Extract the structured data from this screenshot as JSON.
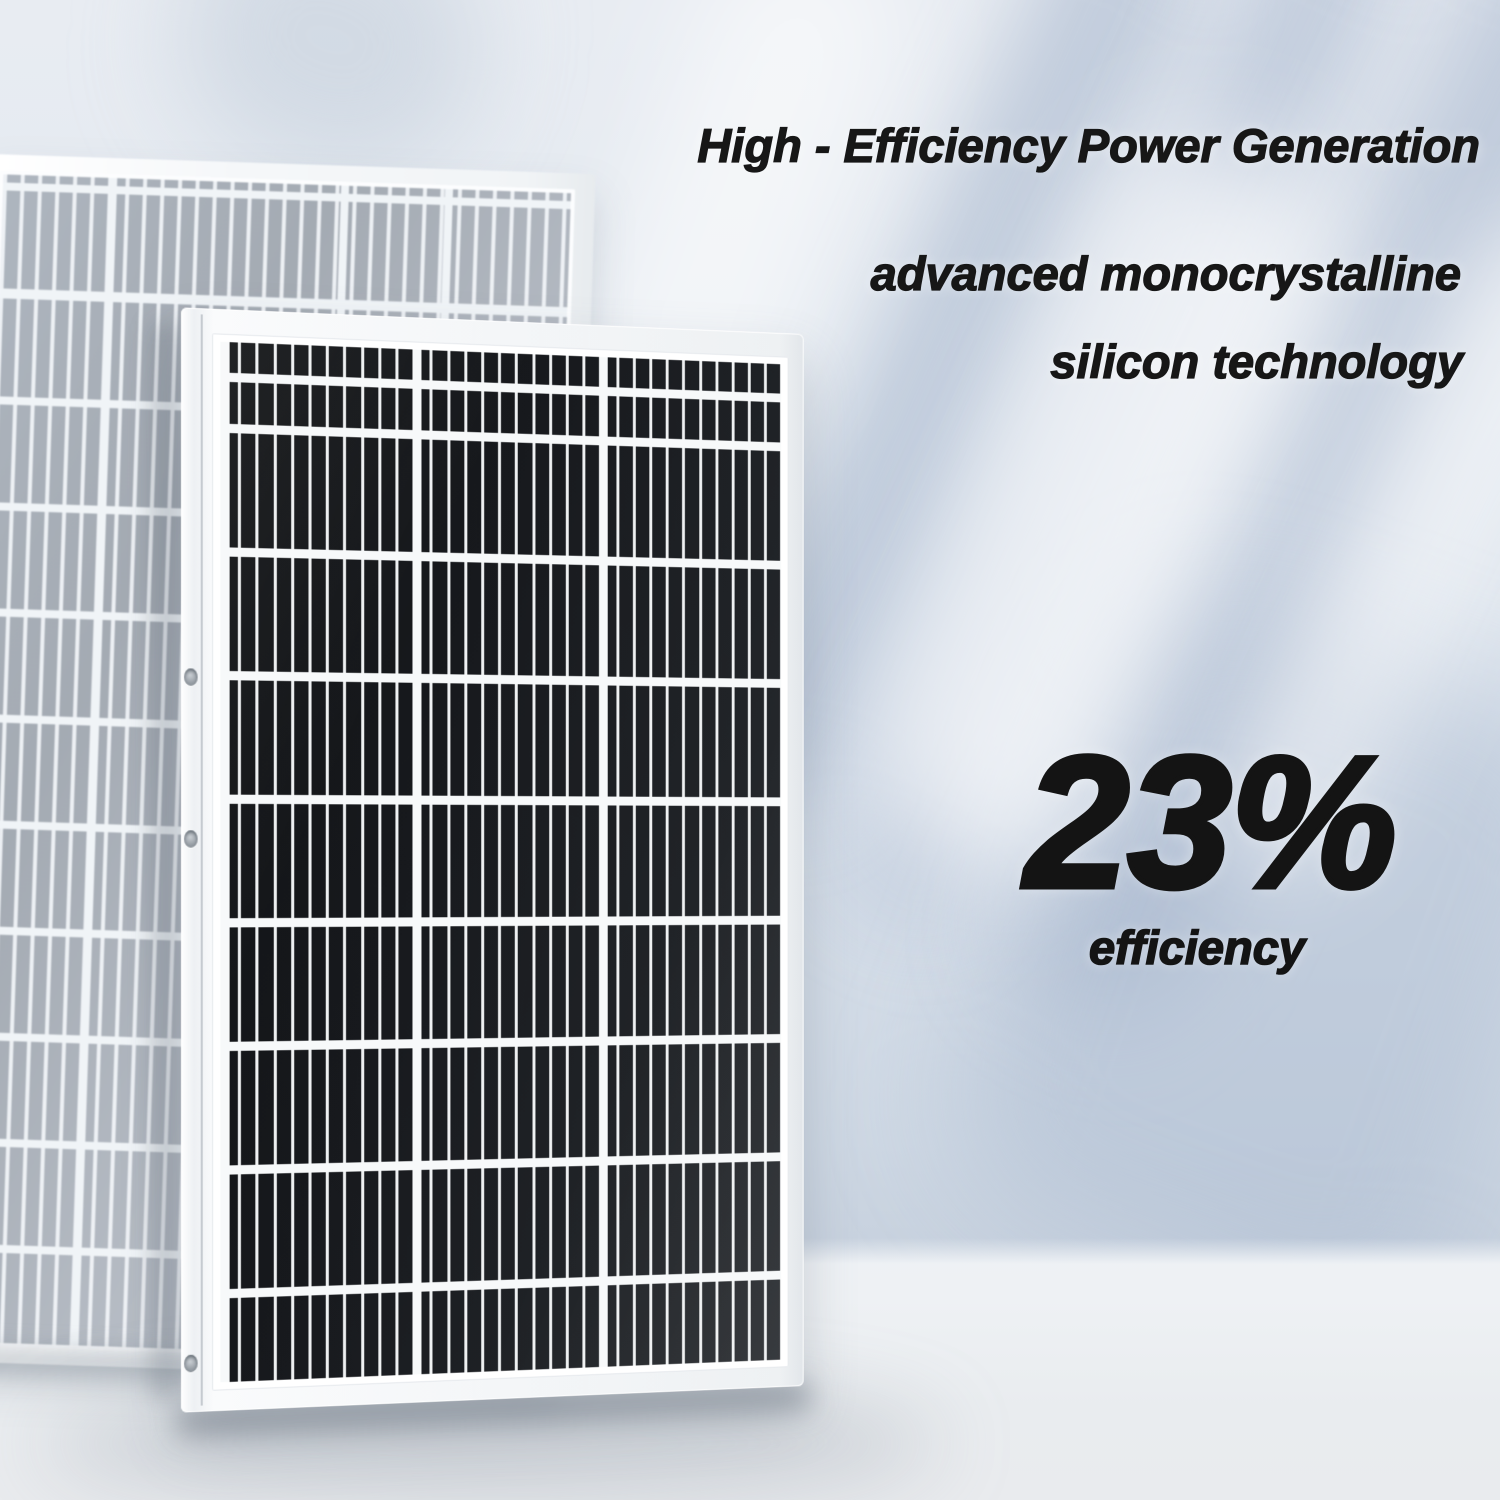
{
  "banner": {
    "headline": {
      "line1": "High - Efficiency Power Generation",
      "line2": "advanced monocrystalline",
      "line3": "silicon technology"
    },
    "stat": {
      "value": "23%",
      "label": "efficiency"
    }
  },
  "colors": {
    "text": "#171717",
    "wall_base": "#dde4ed",
    "wall_shadow_streak": "#a3b2ca",
    "floor": "#eaedf0",
    "panel_frame": "#f4f6f8",
    "front_panel_cells": "#17191c",
    "back_panel_cells": "#98a0a9",
    "grid_lines": "#f7f9fa"
  },
  "objects": {
    "front_panel": "monocrystalline-solar-panel",
    "back_panel": "faded-solar-panel"
  }
}
